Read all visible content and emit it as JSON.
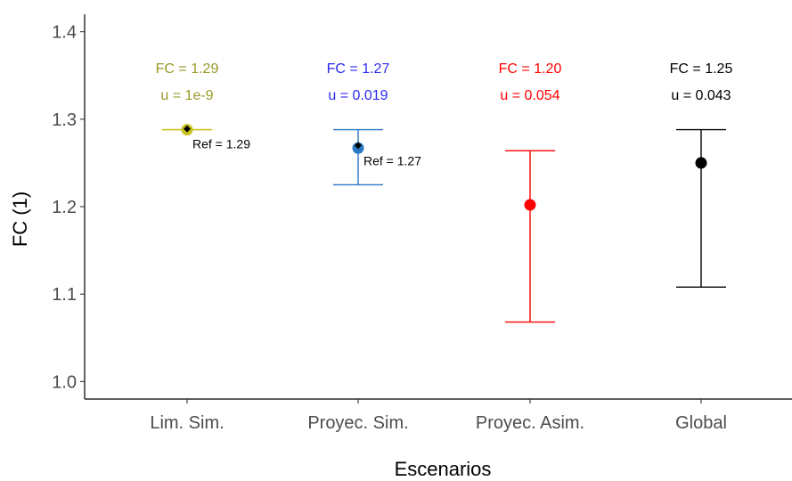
{
  "chart_data": {
    "type": "scatter",
    "xlabel": "Escenarios",
    "ylabel": "FC (1)",
    "ylim": [
      0.98,
      1.42
    ],
    "yticks": [
      1.0,
      1.1,
      1.2,
      1.3,
      1.4
    ],
    "ytick_labels": [
      "1.0",
      "1.1",
      "1.2",
      "1.3",
      "1.4"
    ],
    "grid": false,
    "legend": "none",
    "categories": [
      "Lim. Sim.",
      "Proyec. Sim.",
      "Proyec. Asim.",
      "Global"
    ],
    "series": [
      {
        "category": "Lim. Sim.",
        "fc": 1.288,
        "low": 1.288,
        "high": 1.288,
        "color": "#c9c21f",
        "fc_label": "FC = 1.29",
        "u_label": "u = 1e-9",
        "label_color": "#999928",
        "ref": 1.289,
        "ref_label": "Ref = 1.29"
      },
      {
        "category": "Proyec. Sim.",
        "fc": 1.267,
        "low": 1.225,
        "high": 1.288,
        "color": "#2b78c5",
        "fc_label": "FC = 1.27",
        "u_label": "u = 0.019",
        "label_color": "#2a2aee",
        "ref": 1.27,
        "ref_label": "Ref = 1.27"
      },
      {
        "category": "Proyec. Asim.",
        "fc": 1.202,
        "low": 1.068,
        "high": 1.264,
        "color": "#ff0000",
        "fc_label": "FC = 1.20",
        "u_label": "u = 0.054",
        "label_color": "#ff0000"
      },
      {
        "category": "Global",
        "fc": 1.25,
        "low": 1.108,
        "high": 1.288,
        "color": "#000000",
        "fc_label": "FC = 1.25",
        "u_label": "u = 0.043",
        "label_color": "#000000"
      }
    ]
  }
}
